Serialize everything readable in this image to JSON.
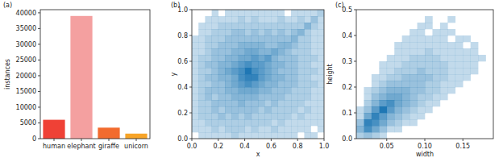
{
  "chart_data": [
    {
      "type": "bar",
      "panel_label": "(a)",
      "y_label": "instances",
      "categories": [
        "human",
        "elephant",
        "giraffe",
        "unicorn"
      ],
      "values": [
        6000,
        39000,
        3500,
        1600
      ],
      "colors": [
        "#ef4136",
        "#f4a0a0",
        "#f26b2e",
        "#f7a428"
      ],
      "ylim": [
        0,
        41000
      ],
      "yticks": [
        0,
        5000,
        10000,
        15000,
        20000,
        25000,
        30000,
        35000,
        40000
      ]
    },
    {
      "type": "heatmap",
      "panel_label": "(b)",
      "x_label": "x",
      "y_label": "y",
      "color": "#1f77b4",
      "xlim": [
        0,
        1
      ],
      "ylim": [
        0,
        1
      ],
      "xticks": [
        {
          "value": 0,
          "label": "0.0"
        },
        0.2,
        0.4,
        0.6,
        0.8,
        {
          "value": 1,
          "label": "1.0"
        }
      ],
      "yticks": [
        {
          "value": 0,
          "label": "0.0"
        },
        0.2,
        0.4,
        0.6,
        0.8,
        {
          "value": 1,
          "label": "1.0"
        }
      ],
      "zlim": [
        0,
        9
      ],
      "x_bins": [
        0,
        0.05,
        0.1,
        0.15,
        0.2,
        0.25,
        0.3,
        0.35,
        0.4,
        0.45,
        0.5,
        0.55,
        0.6,
        0.65,
        0.7,
        0.75,
        0.8,
        0.85,
        0.9,
        0.95,
        1.0
      ],
      "y_bins": [
        0,
        0.05,
        0.1,
        0.15,
        0.2,
        0.25,
        0.3,
        0.35,
        0.4,
        0.45,
        0.5,
        0.55,
        0.6,
        0.65,
        0.7,
        0.75,
        0.8,
        0.85,
        0.9,
        0.95,
        1.0
      ],
      "counts": [
        [
          0,
          1,
          1,
          1,
          1,
          1,
          2,
          1,
          1,
          1,
          1,
          1,
          1,
          1,
          1,
          1,
          0,
          1,
          1,
          0
        ],
        [
          1,
          1,
          1,
          2,
          1,
          2,
          2,
          2,
          1,
          2,
          1,
          1,
          2,
          1,
          1,
          1,
          1,
          1,
          0,
          1
        ],
        [
          1,
          1,
          2,
          2,
          2,
          2,
          2,
          2,
          2,
          2,
          2,
          2,
          1,
          2,
          1,
          1,
          1,
          1,
          1,
          1
        ],
        [
          1,
          2,
          2,
          2,
          3,
          2,
          3,
          2,
          3,
          2,
          2,
          2,
          2,
          2,
          2,
          1,
          2,
          1,
          1,
          1
        ],
        [
          1,
          2,
          2,
          3,
          2,
          3,
          3,
          3,
          3,
          3,
          2,
          3,
          2,
          2,
          2,
          2,
          1,
          2,
          1,
          1
        ],
        [
          1,
          2,
          2,
          3,
          3,
          3,
          3,
          4,
          3,
          3,
          3,
          2,
          3,
          2,
          2,
          2,
          2,
          1,
          1,
          1
        ],
        [
          1,
          2,
          3,
          2,
          3,
          3,
          4,
          4,
          4,
          4,
          3,
          3,
          3,
          3,
          2,
          2,
          2,
          2,
          1,
          1
        ],
        [
          1,
          2,
          3,
          3,
          3,
          4,
          4,
          5,
          5,
          5,
          4,
          4,
          3,
          3,
          3,
          2,
          2,
          2,
          1,
          1
        ],
        [
          1,
          2,
          2,
          3,
          3,
          4,
          5,
          6,
          7,
          6,
          5,
          4,
          4,
          3,
          3,
          3,
          2,
          2,
          2,
          1
        ],
        [
          1,
          2,
          3,
          3,
          4,
          4,
          5,
          7,
          8,
          8,
          6,
          5,
          4,
          4,
          3,
          3,
          2,
          2,
          1,
          1
        ],
        [
          1,
          2,
          2,
          3,
          4,
          5,
          6,
          7,
          9,
          7,
          6,
          5,
          4,
          3,
          3,
          3,
          2,
          2,
          2,
          1
        ],
        [
          1,
          2,
          3,
          3,
          4,
          4,
          5,
          6,
          7,
          6,
          6,
          5,
          4,
          4,
          3,
          3,
          2,
          2,
          1,
          1
        ],
        [
          1,
          2,
          2,
          3,
          3,
          4,
          4,
          5,
          5,
          6,
          5,
          6,
          4,
          3,
          3,
          3,
          2,
          2,
          2,
          1
        ],
        [
          1,
          1,
          2,
          3,
          3,
          3,
          4,
          4,
          5,
          5,
          4,
          4,
          5,
          4,
          3,
          2,
          2,
          2,
          1,
          1
        ],
        [
          1,
          1,
          2,
          2,
          3,
          3,
          3,
          4,
          4,
          4,
          4,
          3,
          3,
          4,
          4,
          3,
          2,
          2,
          1,
          1
        ],
        [
          1,
          1,
          2,
          2,
          2,
          3,
          3,
          3,
          3,
          3,
          3,
          3,
          3,
          3,
          3,
          4,
          2,
          2,
          1,
          1
        ],
        [
          0,
          1,
          1,
          2,
          2,
          2,
          3,
          3,
          2,
          3,
          2,
          3,
          2,
          3,
          2,
          3,
          4,
          2,
          1,
          1
        ],
        [
          0,
          1,
          1,
          1,
          2,
          2,
          2,
          2,
          2,
          2,
          2,
          2,
          2,
          2,
          2,
          2,
          2,
          4,
          2,
          1
        ],
        [
          0,
          0,
          1,
          1,
          1,
          1,
          1,
          2,
          1,
          2,
          1,
          1,
          1,
          2,
          1,
          1,
          2,
          1,
          3,
          1
        ],
        [
          0,
          0,
          0,
          1,
          0,
          1,
          1,
          1,
          1,
          1,
          1,
          1,
          1,
          1,
          0,
          1,
          1,
          1,
          1,
          2
        ]
      ]
    },
    {
      "type": "heatmap",
      "panel_label": "(c)",
      "x_label": "width",
      "y_label": "height",
      "color": "#1f77b4",
      "xlim": [
        0.01,
        0.19
      ],
      "ylim": [
        0,
        0.5
      ],
      "xticks": [
        0.05,
        {
          "value": 0.1,
          "label": "0.10"
        },
        0.15
      ],
      "yticks": [
        {
          "value": 0,
          "label": "0.0"
        },
        0.1,
        0.2,
        0.3,
        0.4,
        0.5
      ],
      "zlim": [
        0,
        9
      ],
      "x_bins": [
        0.01,
        0.02,
        0.03,
        0.04,
        0.05,
        0.06,
        0.07,
        0.08,
        0.09,
        0.1,
        0.11,
        0.12,
        0.13,
        0.14,
        0.15,
        0.16,
        0.17,
        0.18,
        0.19
      ],
      "y_bins": [
        0,
        0.025,
        0.05,
        0.075,
        0.1,
        0.125,
        0.15,
        0.175,
        0.2,
        0.225,
        0.25,
        0.275,
        0.3,
        0.325,
        0.35,
        0.375,
        0.4,
        0.425,
        0.45,
        0.475,
        0.5
      ],
      "counts": [
        [
          2,
          3,
          2,
          1,
          0,
          0,
          0,
          0,
          0,
          0,
          0,
          0,
          0,
          0,
          0,
          0,
          0,
          0
        ],
        [
          4,
          7,
          5,
          3,
          1,
          1,
          0,
          0,
          0,
          0,
          0,
          0,
          0,
          0,
          0,
          0,
          0,
          0
        ],
        [
          3,
          8,
          7,
          5,
          3,
          2,
          1,
          1,
          0,
          0,
          0,
          0,
          0,
          0,
          0,
          0,
          0,
          0
        ],
        [
          1,
          5,
          8,
          6,
          4,
          3,
          2,
          1,
          1,
          0,
          0,
          0,
          0,
          0,
          0,
          0,
          0,
          0
        ],
        [
          1,
          3,
          6,
          9,
          6,
          4,
          3,
          2,
          1,
          1,
          0,
          0,
          0,
          0,
          0,
          0,
          0,
          0
        ],
        [
          0,
          2,
          4,
          6,
          7,
          5,
          4,
          3,
          2,
          1,
          1,
          0,
          0,
          0,
          0,
          0,
          0,
          0
        ],
        [
          0,
          1,
          3,
          4,
          5,
          5,
          4,
          3,
          2,
          2,
          1,
          1,
          0,
          0,
          0,
          0,
          0,
          0
        ],
        [
          0,
          1,
          2,
          3,
          4,
          4,
          4,
          3,
          3,
          2,
          2,
          1,
          1,
          0,
          0,
          0,
          0,
          0
        ],
        [
          0,
          0,
          1,
          2,
          3,
          3,
          3,
          3,
          3,
          2,
          2,
          1,
          1,
          1,
          0,
          0,
          0,
          0
        ],
        [
          0,
          0,
          1,
          1,
          2,
          2,
          3,
          3,
          3,
          3,
          2,
          2,
          1,
          1,
          1,
          0,
          0,
          0
        ],
        [
          0,
          0,
          0,
          1,
          1,
          2,
          2,
          2,
          3,
          2,
          2,
          2,
          1,
          1,
          1,
          1,
          0,
          0
        ],
        [
          0,
          0,
          0,
          1,
          1,
          1,
          2,
          2,
          2,
          2,
          2,
          2,
          1,
          1,
          1,
          1,
          0,
          0
        ],
        [
          0,
          0,
          0,
          0,
          1,
          1,
          1,
          2,
          2,
          2,
          2,
          1,
          1,
          1,
          1,
          1,
          1,
          0
        ],
        [
          0,
          0,
          0,
          0,
          0,
          1,
          1,
          1,
          1,
          2,
          1,
          1,
          1,
          1,
          1,
          1,
          0,
          0
        ],
        [
          0,
          0,
          0,
          0,
          0,
          1,
          1,
          1,
          1,
          1,
          1,
          1,
          1,
          1,
          0,
          1,
          0,
          0
        ],
        [
          0,
          0,
          0,
          0,
          0,
          0,
          1,
          1,
          1,
          1,
          1,
          1,
          0,
          1,
          1,
          0,
          0,
          0
        ],
        [
          0,
          0,
          0,
          0,
          0,
          0,
          0,
          1,
          1,
          0,
          1,
          1,
          1,
          0,
          0,
          0,
          0,
          0
        ],
        [
          0,
          0,
          0,
          0,
          0,
          0,
          0,
          0,
          1,
          1,
          0,
          1,
          0,
          0,
          0,
          0,
          0,
          0
        ],
        [
          0,
          0,
          0,
          0,
          0,
          0,
          0,
          0,
          0,
          1,
          0,
          0,
          1,
          0,
          0,
          0,
          0,
          0
        ],
        [
          0,
          0,
          0,
          0,
          0,
          0,
          0,
          0,
          0,
          0,
          0,
          0,
          0,
          0,
          0,
          0,
          0,
          0
        ]
      ]
    }
  ]
}
